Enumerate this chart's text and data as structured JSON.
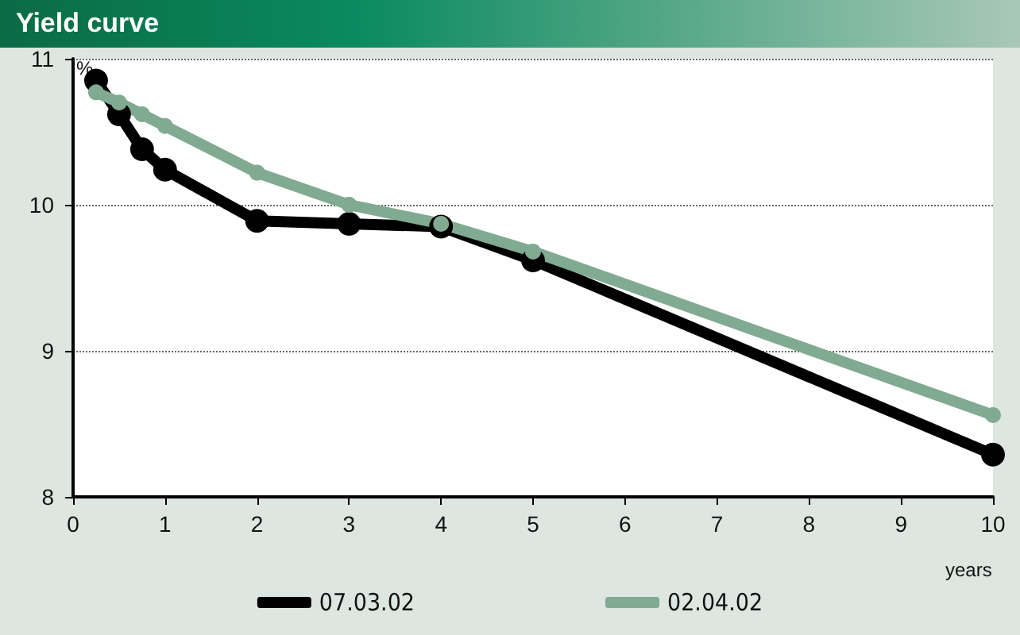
{
  "chart_data": {
    "type": "line",
    "title": "Yield curve",
    "ylabel": "%",
    "xlabel": "years",
    "x": [
      0.25,
      0.5,
      0.75,
      1,
      2,
      3,
      4,
      5,
      10
    ],
    "series": [
      {
        "name": "07.03.02",
        "color": "#000000",
        "values": [
          10.85,
          10.62,
          10.38,
          10.24,
          9.89,
          9.87,
          9.85,
          9.62,
          8.29
        ]
      },
      {
        "name": "02.04.02",
        "color": "#80aa92",
        "values": [
          10.77,
          10.7,
          10.62,
          10.54,
          10.22,
          10.0,
          9.87,
          9.68,
          8.56
        ]
      }
    ],
    "xlim": [
      0,
      10
    ],
    "xticks": [
      0,
      1,
      2,
      3,
      4,
      5,
      6,
      7,
      8,
      9,
      10
    ],
    "ylim": [
      8,
      11
    ],
    "yticks": [
      8,
      9,
      10,
      11
    ],
    "grid": "y",
    "legend": "bottom",
    "marker": "circle",
    "line_style": "solid"
  }
}
